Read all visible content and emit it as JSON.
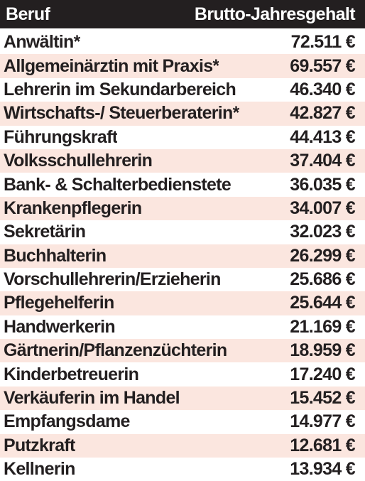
{
  "chart_data": {
    "type": "table",
    "columns": [
      "Beruf",
      "Brutto-Jahresgehalt"
    ],
    "rows": [
      {
        "beruf": "Anwältin*",
        "gehalt": "72.511 €"
      },
      {
        "beruf": "Allgemeinärztin mit Praxis*",
        "gehalt": "69.557 €"
      },
      {
        "beruf": "Lehrerin im Sekundarbereich",
        "gehalt": "46.340 €"
      },
      {
        "beruf": "Wirtschafts-/ Steuerberaterin*",
        "gehalt": "42.827 €"
      },
      {
        "beruf": "Führungskraft",
        "gehalt": "44.413 €"
      },
      {
        "beruf": "Volksschullehrerin",
        "gehalt": "37.404 €"
      },
      {
        "beruf": "Bank- & Schalterbedienstete",
        "gehalt": "36.035 €"
      },
      {
        "beruf": "Krankenpflegerin",
        "gehalt": "34.007 €"
      },
      {
        "beruf": "Sekretärin",
        "gehalt": "32.023 €"
      },
      {
        "beruf": "Buchhalterin",
        "gehalt": "26.299 €"
      },
      {
        "beruf": "Vorschullehrerin/Erzieherin",
        "gehalt": "25.686 €"
      },
      {
        "beruf": "Pflegehelferin",
        "gehalt": "25.644 €"
      },
      {
        "beruf": "Handwerkerin",
        "gehalt": "21.169 €"
      },
      {
        "beruf": "Gärtnerin/Pflanzenzüchterin",
        "gehalt": "18.959 €"
      },
      {
        "beruf": "Kinderbetreuerin",
        "gehalt": "17.240 €"
      },
      {
        "beruf": "Verkäuferin im Handel",
        "gehalt": "15.452 €"
      },
      {
        "beruf": "Empfangsdame",
        "gehalt": "14.977 €"
      },
      {
        "beruf": "Putzkraft",
        "gehalt": "12.681 €"
      },
      {
        "beruf": "Kellnerin",
        "gehalt": "13.934 €"
      }
    ]
  },
  "colors": {
    "header_bg": "#231f20",
    "header_text": "#ffffff",
    "row_alt_bg": "#fbe6df",
    "row_bg": "#ffffff",
    "text": "#231f20"
  }
}
